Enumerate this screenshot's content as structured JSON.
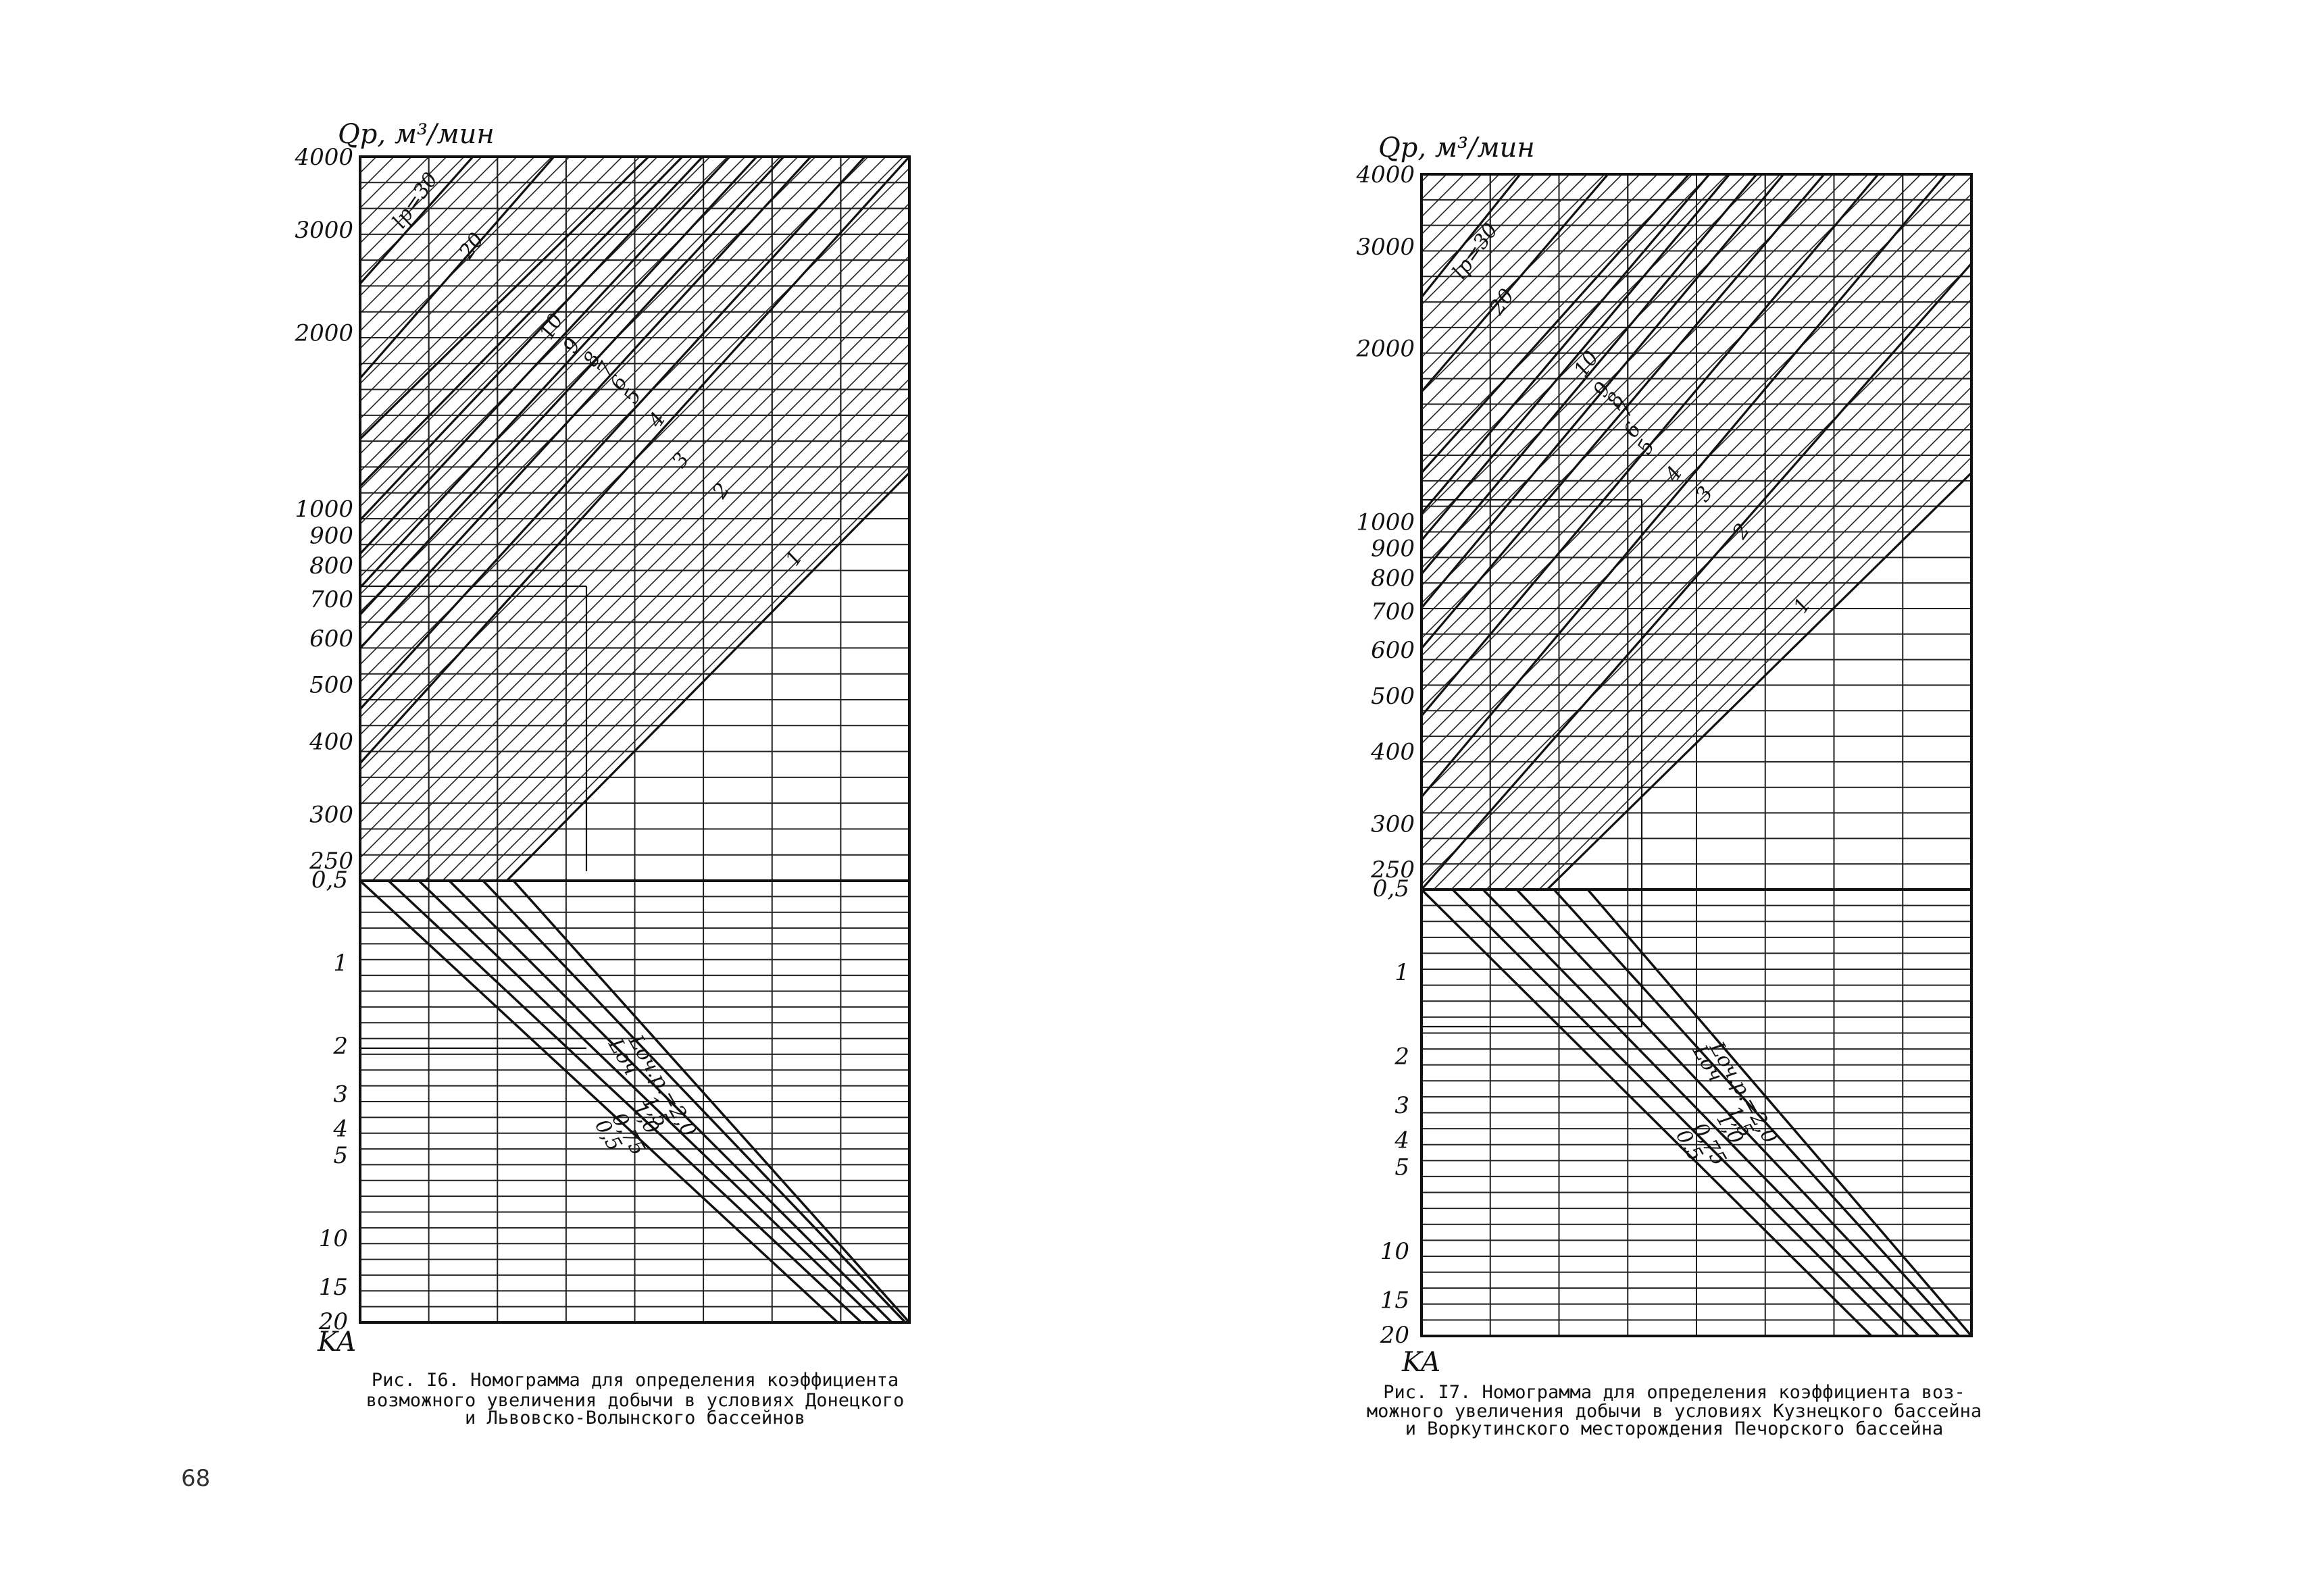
{
  "page_number": "68",
  "chart_data": [
    {
      "type": "line",
      "figure": "Рис. 16",
      "caption_lines": [
        "Рис. I6.   Номограмма для определения коэффициента",
        "возможного увеличения добычи  в  условиях Донецкого",
        "и Львовско-Волынского бассейнов"
      ],
      "y_axis_title": "Qр, м³/мин",
      "x_axis_title": "KA",
      "q_ticks": [
        "4000",
        "3000",
        "2000",
        "1000",
        "900",
        "800",
        "700",
        "600",
        "500",
        "400",
        "300",
        "250"
      ],
      "q_values": [
        4000,
        3000,
        2000,
        1000,
        900,
        800,
        700,
        600,
        500,
        400,
        300,
        250
      ],
      "k_ticks": [
        "0,5",
        "1",
        "2",
        "3",
        "4",
        "5",
        "10",
        "15",
        "20"
      ],
      "k_values": [
        0.5,
        1,
        2,
        3,
        4,
        5,
        10,
        15,
        20
      ],
      "upper_series": [
        {
          "name": "lр=30",
          "label": "lр=30"
        },
        {
          "name": "20",
          "label": "20"
        },
        {
          "name": "10",
          "label": "10"
        },
        {
          "name": "9",
          "label": "9"
        },
        {
          "name": "8",
          "label": "8"
        },
        {
          "name": "7",
          "label": "7"
        },
        {
          "name": "6",
          "label": "6"
        },
        {
          "name": "5",
          "label": "5"
        },
        {
          "name": "4",
          "label": "4"
        },
        {
          "name": "3",
          "label": "3"
        },
        {
          "name": "2",
          "label": "2"
        },
        {
          "name": "1",
          "label": "1"
        }
      ],
      "lower_series_labels": [
        "Lоч.р.=2,0",
        "Lоч",
        "1,5",
        "1,0",
        "0,75",
        "0,5"
      ]
    },
    {
      "type": "line",
      "figure": "Рис. 17",
      "caption_lines": [
        "Рис.  I7.   Номограмма для определения коэффициента воз-",
        "можного увеличения добычи в условиях Кузнецкого бассейна",
        "и Воркутинского месторождения Печорского бассейна"
      ],
      "y_axis_title": "Qр, м³/мин",
      "x_axis_title": "KA",
      "q_ticks": [
        "4000",
        "3000",
        "2000",
        "1000",
        "900",
        "800",
        "700",
        "600",
        "500",
        "400",
        "300",
        "250"
      ],
      "q_values": [
        4000,
        3000,
        2000,
        1000,
        900,
        800,
        700,
        600,
        500,
        400,
        300,
        250
      ],
      "k_ticks": [
        "0,5",
        "1",
        "2",
        "3",
        "4",
        "5",
        "10",
        "15",
        "20"
      ],
      "k_values": [
        0.5,
        1,
        2,
        3,
        4,
        5,
        10,
        15,
        20
      ],
      "upper_series": [
        {
          "name": "lр=30",
          "label": "lр=30"
        },
        {
          "name": "20",
          "label": "20"
        },
        {
          "name": "10",
          "label": "10"
        },
        {
          "name": "9",
          "label": "9"
        },
        {
          "name": "8",
          "label": "8"
        },
        {
          "name": "7",
          "label": "7"
        },
        {
          "name": "6",
          "label": "6"
        },
        {
          "name": "5",
          "label": "5"
        },
        {
          "name": "4",
          "label": "4"
        },
        {
          "name": "3",
          "label": "3"
        },
        {
          "name": "2",
          "label": "2"
        },
        {
          "name": "1",
          "label": "1"
        }
      ],
      "lower_series_labels": [
        "Lоч.р.=2,0",
        "Lоч",
        "1,5",
        "1,0",
        "0,75",
        "0,5"
      ]
    }
  ]
}
